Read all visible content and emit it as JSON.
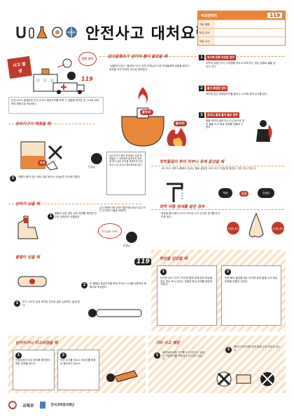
{
  "header": {
    "title": "안전사고 대처요령",
    "table": {
      "heading": "주요연락처",
      "emergency": "119",
      "rows": [
        "진료 병원",
        "보건 교사",
        "담당 교사"
      ]
    }
  },
  "intro": {
    "badge": "사고 발생",
    "bubble": "안전 조치",
    "phone": "119",
    "note": "안전사고가 발생하면 보건 교사가 응급조치를 하며 그 상황을 파악한 후 119로 연락하여 병원으로 후송한다."
  },
  "sections": {
    "fire": {
      "title": "알코올램프가 넘어져 불이 붙었을 때",
      "desc": "\"실험하지 맙고 \"불이야!\"라고 외쳐 선생님과 다른 학생들에게 상황을 알리고 침착을 지켜 안전한 곳으로 대피한다.",
      "shout1": "불이야!",
      "shout2": "불이야!",
      "steps": [
        {
          "n": "1",
          "head": "초기에 진화 가능한 경우",
          "text": "주변의 실험기구나 시약병을 치우고 모래 또는 젖은 걸레로 불을 덮어서 끈다."
        },
        {
          "n": "2",
          "head": "불이 확대된 경우",
          "text": "복도에 있는 화재경보기를 울리고 119에 화재 신고를 한다."
        },
        {
          "n": "3",
          "head": "옷이나 몸에 불이 붙은 경우",
          "text": "몸을 바닥에 굴리거나 수건 등으로 덮어 불을 끄고 화상 부위를 찬물에 식힌다."
        }
      ]
    },
    "glass": {
      "title": "유리기구가 깨졌을 때",
      "label": "유리",
      "teacher": "선생님",
      "step1": "작은 조각을 통해 다치지 않도록 장갑을 끼고 빗자루와 쓰레받기로 치운다.",
      "step2": "작품이 흩어 있는 제로 제공 등으는 선생님의 지시에 따른다.",
      "step3": "유리기구가 깨진 경우에는 다른 학생들은 그 자리에서 움직이지 않도록 하고 유리 조각을 제외하게 처리하고 나서 교사가 정리하도록 한다."
    },
    "cut": {
      "title": "상처가 났을 때",
      "step1": "출혈이 심한 경우 상처 부위를 깨끗한 천으로 압박하여 지혈한다.",
      "bubble": "보건실에 가세요",
      "step2": "유리 파편에 의한 상처는 빨간약을 바르지 말고 보건 교사에게 도움을 요청한다.",
      "teacher": "선생님"
    },
    "bleed": {
      "title": "출혈이 있을 때",
      "phone": "119",
      "step1": "피가 나오지 않게 깨끗한 천으로 눌러 심장보다 높게 한다.",
      "step2": "큰 출혈은 응급조치를 하며 조속히 119를 이용하여 병원으로 후송한다."
    },
    "chem_skin": {
      "title": "화학물질이 튀어 피부나 옷에 묻었을 때",
      "desc": "수도 또는 세척 노즐에서 흐르는 물로 충분히 씻어 내고 선생님께 알린다. 옷은 즉시 벗는다.",
      "tag1": "학생",
      "tag2": "신고",
      "tag3": "선생님"
    },
    "chem_smell": {
      "title": "화학 약품 냄새를 맡은 경우",
      "desc": "창문을 열어 환기시키고 밖으로 나가 신선한 공기를 마시도록 한다.",
      "tag1": "신선한 공기",
      "tag2": "신선한 공기"
    },
    "burn": {
      "title": "화상을 입었을 때",
      "step1": "뜨거운 유리 기구나 뜨거운 물체 등에 닿아 화상을 입은 경우 즉시 흐르는 찬물에 화상 부위를 충분히 식힌다.",
      "step2": "옷에 불이 붙었을 때는 바닥에 굴러 불을 끄고 화상 부위를 찬물에 식힌다."
    },
    "fall": {
      "title": "넘어지거나 미끄러졌을 때",
      "step1": "선생님에게 부상 정도를 확인받아 전문 처치를 받는다.",
      "step2": "보건 교사를 부르고 부상자를 함부로 움직이지 않는다."
    },
    "other": {
      "title": "기타 사고 예방",
      "step1": "화장실에 실험 기구를 두지 않는다. 실험 시 보호장비를 착용하고 장난치지 않는다.",
      "step2": "레이저 포인터와 강한 빛을 눈에 비추지 않는다."
    }
  },
  "footer": {
    "org1": "교육부",
    "org2": "한국과학창의재단"
  },
  "colors": {
    "accent": "#c0392b",
    "orange": "#e8863a",
    "cream": "#fdf3e6"
  }
}
